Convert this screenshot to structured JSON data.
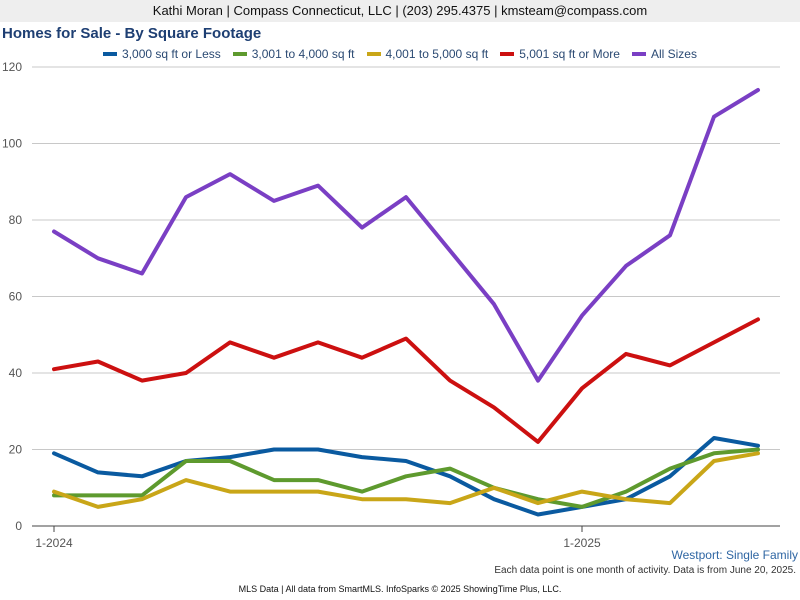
{
  "header": {
    "contact": "Kathi Moran | Compass Connecticut, LLC | (203) 295.4375 | kmsteam@compass.com"
  },
  "footer": {
    "region": "Westport: Single Family",
    "note": "Each data point is one month of activity. Data is from June 20, 2025.",
    "credit": "MLS Data | All data from SmartMLS. InfoSparks © 2025 ShowingTime Plus, LLC."
  },
  "chart_data": {
    "type": "line",
    "title": "Homes for Sale - By Square Footage",
    "xlabel": "",
    "ylabel": "",
    "x": [
      "2024-01",
      "2024-02",
      "2024-03",
      "2024-04",
      "2024-05",
      "2024-06",
      "2024-07",
      "2024-08",
      "2024-09",
      "2024-10",
      "2024-11",
      "2024-12",
      "2025-01",
      "2025-02",
      "2025-03",
      "2025-04",
      "2025-05"
    ],
    "x_tick_labels": [
      {
        "x": "2024-01",
        "label": "1-2024"
      },
      {
        "x": "2025-01",
        "label": "1-2025"
      }
    ],
    "ylim": [
      0,
      120
    ],
    "y_ticks": [
      0,
      20,
      40,
      60,
      80,
      100,
      120
    ],
    "grid": true,
    "legend_position": "top",
    "series": [
      {
        "name": "3,000 sq ft or Less",
        "color": "#0a5aa0",
        "values": [
          19,
          14,
          13,
          17,
          18,
          20,
          20,
          18,
          17,
          13,
          7,
          3,
          5,
          7,
          13,
          23,
          21
        ]
      },
      {
        "name": "3,001 to 4,000 sq ft",
        "color": "#5e9a2e",
        "values": [
          8,
          8,
          8,
          17,
          17,
          12,
          12,
          9,
          13,
          15,
          10,
          7,
          5,
          9,
          15,
          19,
          20
        ]
      },
      {
        "name": "4,001 to 5,000 sq ft",
        "color": "#c9a618",
        "values": [
          9,
          5,
          7,
          12,
          9,
          9,
          9,
          7,
          7,
          6,
          10,
          6,
          9,
          7,
          6,
          17,
          19
        ]
      },
      {
        "name": "5,001 sq ft or More",
        "color": "#cc1010",
        "values": [
          41,
          43,
          38,
          40,
          48,
          44,
          48,
          44,
          49,
          38,
          31,
          22,
          36,
          45,
          42,
          48,
          54
        ]
      },
      {
        "name": "All Sizes",
        "color": "#7a3fc4",
        "values": [
          77,
          70,
          66,
          86,
          92,
          85,
          89,
          78,
          86,
          72,
          58,
          38,
          55,
          68,
          76,
          107,
          114
        ]
      }
    ]
  }
}
